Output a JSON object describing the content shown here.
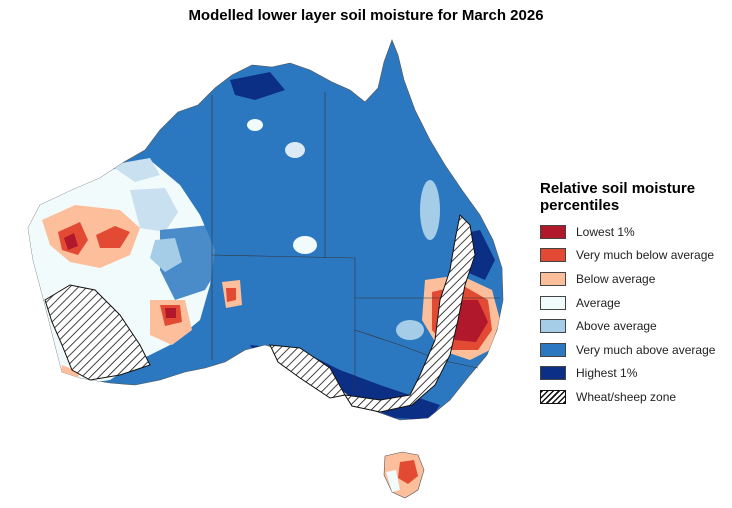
{
  "title": "Modelled lower layer soil moisture for March 2026",
  "legend": {
    "title": "Relative soil moisture percentiles",
    "items": [
      {
        "label": "Lowest 1%",
        "color": "#b2182b",
        "icon": ""
      },
      {
        "label": "Very much below average",
        "color": "#e34a33",
        "icon": ""
      },
      {
        "label": "Below average",
        "color": "#fdbf9b",
        "icon": ""
      },
      {
        "label": "Average",
        "color": "#f2fbfb",
        "icon": ""
      },
      {
        "label": "Above average",
        "color": "#a6cde8",
        "icon": ""
      },
      {
        "label": "Very much above average",
        "color": "#2c78c0",
        "icon": ""
      },
      {
        "label": "Highest 1%",
        "color": "#0c2f86",
        "icon": ""
      },
      {
        "label": "Wheat/sheep zone",
        "color": "#ffffff",
        "icon": "hatched-swatch"
      }
    ]
  }
}
